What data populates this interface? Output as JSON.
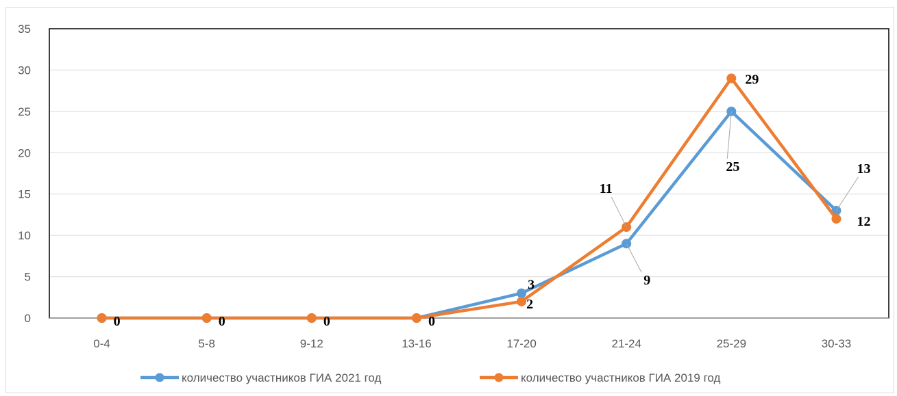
{
  "chart_data": {
    "type": "line",
    "categories": [
      "0-4",
      "5-8",
      "9-12",
      "13-16",
      "17-20",
      "21-24",
      "25-29",
      "30-33"
    ],
    "series": [
      {
        "name": "количество участников ГИА 2021 год",
        "values": [
          0,
          0,
          0,
          0,
          3,
          9,
          25,
          13
        ],
        "color": "#5B9BD5"
      },
      {
        "name": "количество участников ГИА 2019 год",
        "values": [
          0,
          0,
          0,
          0,
          2,
          11,
          29,
          12
        ],
        "color": "#ED7D31"
      }
    ],
    "y_ticks": [
      "0",
      "5",
      "10",
      "15",
      "20",
      "25",
      "30",
      "35"
    ],
    "ylim": [
      0,
      35
    ],
    "grid": true,
    "legend": "bottom",
    "data_labels": [
      {
        "text": "0",
        "series": 1,
        "index": 0
      },
      {
        "text": "0",
        "series": 1,
        "index": 1
      },
      {
        "text": "0",
        "series": 1,
        "index": 2
      },
      {
        "text": "0",
        "series": 1,
        "index": 3
      },
      {
        "text": "3",
        "series": 0,
        "index": 4
      },
      {
        "text": "2",
        "series": 1,
        "index": 4
      },
      {
        "text": "9",
        "series": 0,
        "index": 5
      },
      {
        "text": "11",
        "series": 1,
        "index": 5
      },
      {
        "text": "25",
        "series": 0,
        "index": 6
      },
      {
        "text": "29",
        "series": 1,
        "index": 6
      },
      {
        "text": "13",
        "series": 0,
        "index": 7
      },
      {
        "text": "12",
        "series": 1,
        "index": 7
      }
    ]
  }
}
